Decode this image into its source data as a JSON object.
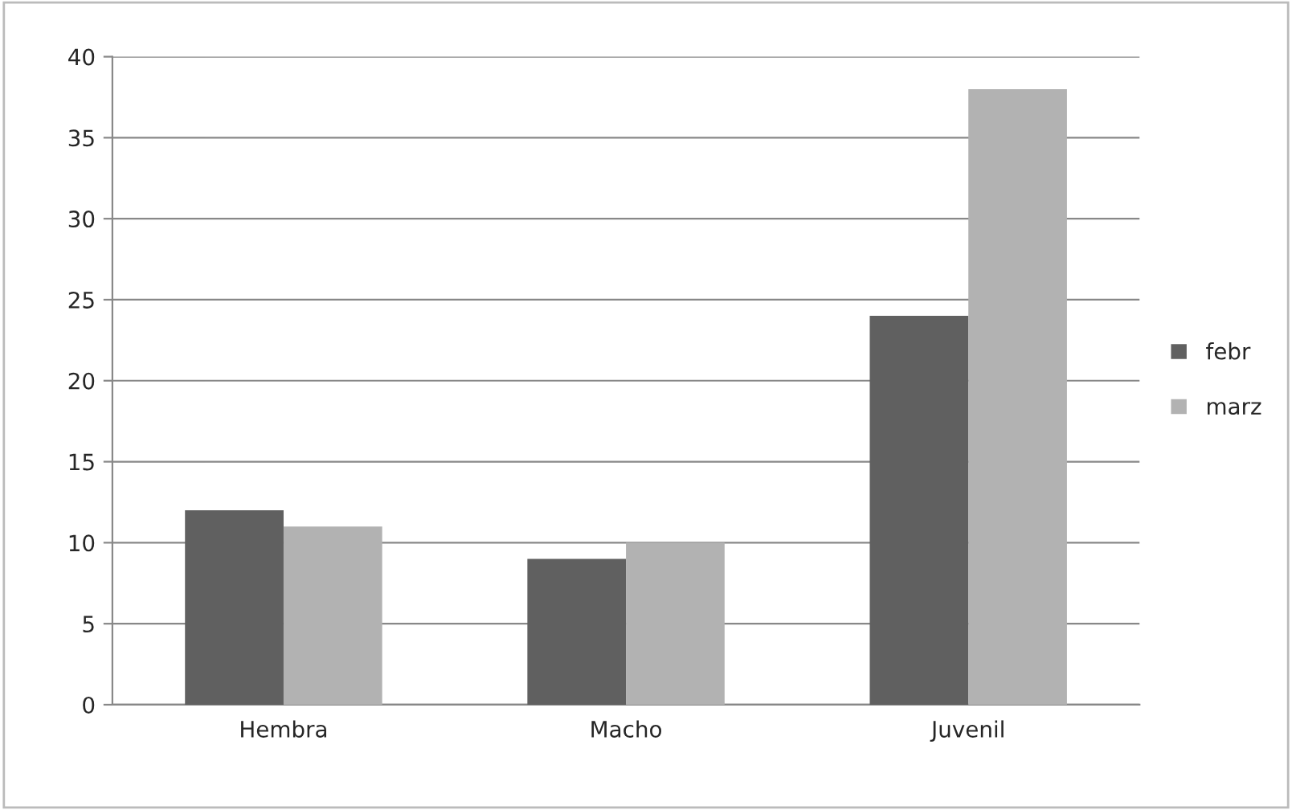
{
  "chart_data": {
    "type": "bar",
    "categories": [
      "Hembra",
      "Macho",
      "Juvenil"
    ],
    "series": [
      {
        "name": "febr",
        "color": "#606060",
        "values": [
          12,
          9,
          24
        ]
      },
      {
        "name": "marz",
        "color": "#b2b2b2",
        "values": [
          11,
          10,
          38
        ]
      }
    ],
    "ylim": [
      0,
      40
    ],
    "yticks": [
      0,
      5,
      10,
      15,
      20,
      25,
      30,
      35,
      40
    ],
    "grid": "y",
    "legend": "right"
  }
}
